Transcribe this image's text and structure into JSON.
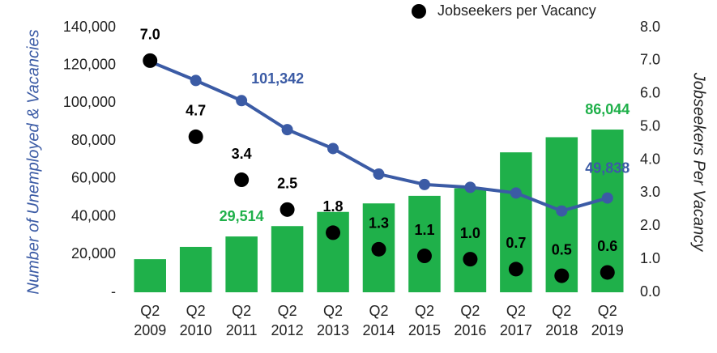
{
  "chart_data": {
    "type": "bar_line_scatter",
    "ylabel": "Number of Unemployed & Vacancies",
    "y2label": "Jobseekers Per Vacancy",
    "categories": [
      "Q2 2009",
      "Q2 2010",
      "Q2 2011",
      "Q2 2012",
      "Q2 2013",
      "Q2 2014",
      "Q2 2015",
      "Q2 2016",
      "Q2 2017",
      "Q2 2018",
      "Q2 2019"
    ],
    "series": [
      {
        "type": "bar",
        "color": "#1fb04a",
        "values": [
          17500,
          24000,
          29514,
          35000,
          42500,
          47000,
          51000,
          55000,
          74000,
          82000,
          86044
        ],
        "value_labels": [
          null,
          null,
          "29,514",
          null,
          null,
          null,
          null,
          null,
          null,
          null,
          "86,044"
        ]
      },
      {
        "type": "line",
        "color": "#3b5ba5",
        "values": [
          122000,
          112000,
          101342,
          86000,
          76000,
          62500,
          57000,
          55500,
          52500,
          43000,
          49838
        ],
        "value_labels": [
          null,
          null,
          "101,342",
          null,
          null,
          null,
          null,
          null,
          null,
          null,
          "49,838"
        ]
      },
      {
        "type": "scatter",
        "name": "Jobseekers per Vacancy",
        "color": "#000000",
        "axis": "y2",
        "values": [
          7.0,
          4.7,
          3.4,
          2.5,
          1.8,
          1.3,
          1.1,
          1.0,
          0.7,
          0.5,
          0.6
        ],
        "value_labels": [
          "7.0",
          "4.7",
          "3.4",
          "2.5",
          "1.8",
          "1.3",
          "1.1",
          "1.0",
          "0.7",
          "0.5",
          "0.6"
        ]
      }
    ],
    "ylim": [
      0,
      140000
    ],
    "yticks": [
      {
        "value": 0,
        "label": "-"
      },
      {
        "value": 20000,
        "label": "20,000"
      },
      {
        "value": 40000,
        "label": "40,000"
      },
      {
        "value": 60000,
        "label": "60,000"
      },
      {
        "value": 80000,
        "label": "80,000"
      },
      {
        "value": 100000,
        "label": "100,000"
      },
      {
        "value": 120000,
        "label": "120,000"
      },
      {
        "value": 140000,
        "label": "140,000"
      }
    ],
    "y2lim": [
      0,
      8
    ],
    "y2ticks": [
      {
        "value": 0,
        "label": "0.0"
      },
      {
        "value": 1,
        "label": "1.0"
      },
      {
        "value": 2,
        "label": "2.0"
      },
      {
        "value": 3,
        "label": "3.0"
      },
      {
        "value": 4,
        "label": "4.0"
      },
      {
        "value": 5,
        "label": "5.0"
      },
      {
        "value": 6,
        "label": "6.0"
      },
      {
        "value": 7,
        "label": "7.0"
      },
      {
        "value": 8,
        "label": "8.0"
      }
    ],
    "grid": false,
    "legend": "top-right"
  }
}
